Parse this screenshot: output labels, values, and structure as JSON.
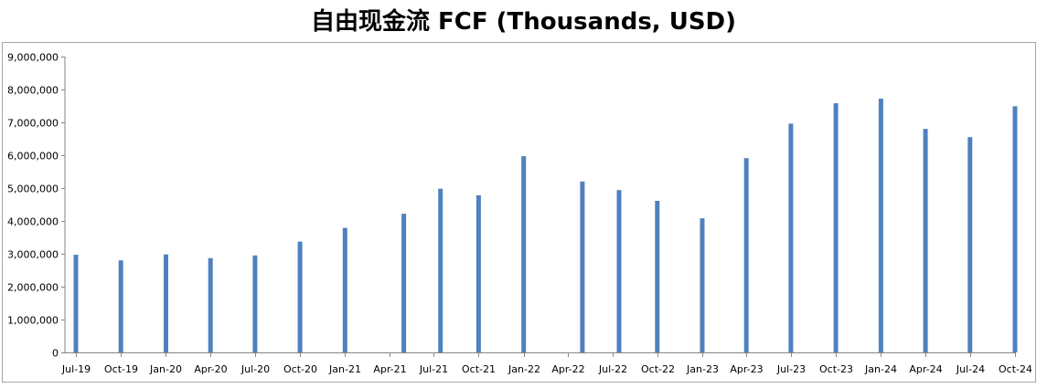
{
  "chart_data": {
    "type": "bar",
    "title": "自由现金流 FCF (Thousands, USD)",
    "xlabel": "",
    "ylabel": "",
    "ylim": [
      0,
      9000000
    ],
    "yticks": [
      0,
      1000000,
      2000000,
      3000000,
      4000000,
      5000000,
      6000000,
      7000000,
      8000000,
      9000000
    ],
    "ytick_labels": [
      "0",
      "1,000,000",
      "2,000,000",
      "3,000,000",
      "4,000,000",
      "5,000,000",
      "6,000,000",
      "7,000,000",
      "8,000,000",
      "9,000,000"
    ],
    "xlim": [
      "2019-07-01",
      "2024-10-31"
    ],
    "xticks": [
      "2019-07-01",
      "2019-10-01",
      "2020-01-01",
      "2020-04-01",
      "2020-07-01",
      "2020-10-01",
      "2021-01-01",
      "2021-04-01",
      "2021-07-01",
      "2021-10-01",
      "2022-01-01",
      "2022-04-01",
      "2022-07-01",
      "2022-10-01",
      "2023-01-01",
      "2023-04-01",
      "2023-07-01",
      "2023-10-01",
      "2024-01-01",
      "2024-04-01",
      "2024-07-01",
      "2024-10-01"
    ],
    "xtick_labels": [
      "Jul-19",
      "Oct-19",
      "Jan-20",
      "Apr-20",
      "Jul-20",
      "Oct-20",
      "Jan-21",
      "Apr-21",
      "Jul-21",
      "Oct-21",
      "Jan-22",
      "Apr-22",
      "Jul-22",
      "Oct-22",
      "Jan-23",
      "Apr-23",
      "Jul-23",
      "Oct-23",
      "Jan-24",
      "Apr-24",
      "Jul-24",
      "Oct-24"
    ],
    "x": [
      "2019-07-01",
      "2019-10-01",
      "2020-01-01",
      "2020-04-01",
      "2020-07-01",
      "2020-10-01",
      "2021-01-01",
      "2021-05-01",
      "2021-07-15",
      "2021-10-01",
      "2022-01-01",
      "2022-05-01",
      "2022-07-15",
      "2022-10-01",
      "2023-01-01",
      "2023-04-01",
      "2023-07-01",
      "2023-10-01",
      "2024-01-01",
      "2024-04-01",
      "2024-07-01",
      "2024-10-01"
    ],
    "values": [
      2970000,
      2800000,
      2980000,
      2870000,
      2950000,
      3370000,
      3790000,
      4220000,
      4980000,
      4780000,
      5970000,
      5200000,
      4940000,
      4610000,
      4080000,
      5910000,
      6960000,
      7580000,
      7720000,
      6800000,
      6550000,
      7490000
    ],
    "bar_color": "#4f81bd",
    "grid": false,
    "legend": "none"
  }
}
